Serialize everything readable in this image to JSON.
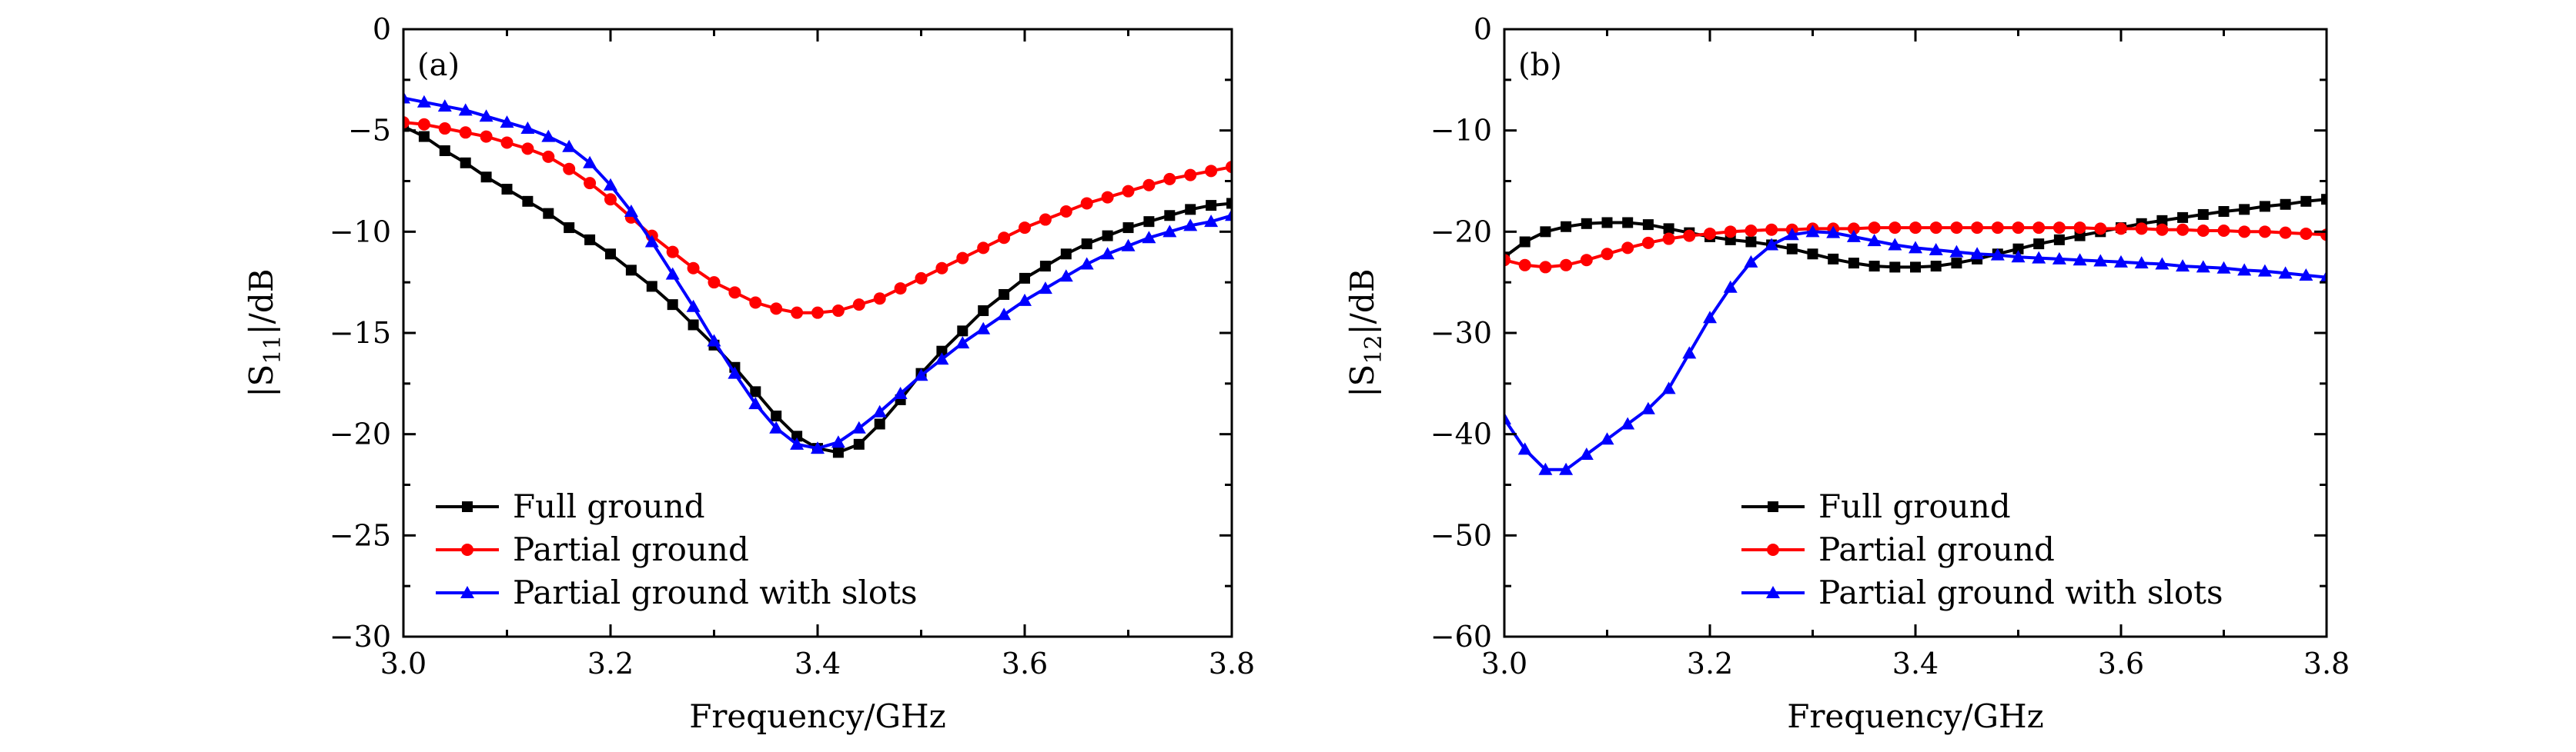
{
  "chart_data": [
    {
      "type": "line",
      "panel_label": "(a)",
      "xlabel": "Frequency/GHz",
      "ylabel_base": "|S",
      "ylabel_sub": "11",
      "ylabel_tail": "|/dB",
      "xlim": [
        3.0,
        3.8
      ],
      "ylim": [
        -30,
        0
      ],
      "xticks": [
        3.0,
        3.2,
        3.4,
        3.6,
        3.8
      ],
      "xtick_labels": [
        "3.0",
        "3.2",
        "3.4",
        "3.6",
        "3.8"
      ],
      "yticks": [
        0,
        -5,
        -10,
        -15,
        -20,
        -25,
        -30
      ],
      "ytick_labels": [
        "0",
        "−5",
        "−10",
        "−15",
        "−20",
        "−25",
        "−30"
      ],
      "grid": false,
      "legend_position": "bottom-left",
      "series": [
        {
          "name": "Full ground",
          "color": "#000000",
          "marker": "square",
          "x": [
            3.0,
            3.02,
            3.04,
            3.06,
            3.08,
            3.1,
            3.12,
            3.14,
            3.16,
            3.18,
            3.2,
            3.22,
            3.24,
            3.26,
            3.28,
            3.3,
            3.32,
            3.34,
            3.36,
            3.38,
            3.4,
            3.42,
            3.44,
            3.46,
            3.48,
            3.5,
            3.52,
            3.54,
            3.56,
            3.58,
            3.6,
            3.62,
            3.64,
            3.66,
            3.68,
            3.7,
            3.72,
            3.74,
            3.76,
            3.78,
            3.8
          ],
          "y": [
            -4.8,
            -5.3,
            -6.0,
            -6.6,
            -7.3,
            -7.9,
            -8.5,
            -9.1,
            -9.8,
            -10.4,
            -11.1,
            -11.9,
            -12.7,
            -13.6,
            -14.6,
            -15.6,
            -16.7,
            -17.9,
            -19.1,
            -20.1,
            -20.7,
            -20.9,
            -20.5,
            -19.5,
            -18.3,
            -17.0,
            -15.9,
            -14.9,
            -13.9,
            -13.1,
            -12.3,
            -11.7,
            -11.1,
            -10.6,
            -10.2,
            -9.8,
            -9.5,
            -9.2,
            -8.9,
            -8.7,
            -8.6
          ]
        },
        {
          "name": "Partial ground",
          "color": "#ff0000",
          "marker": "circle",
          "x": [
            3.0,
            3.02,
            3.04,
            3.06,
            3.08,
            3.1,
            3.12,
            3.14,
            3.16,
            3.18,
            3.2,
            3.22,
            3.24,
            3.26,
            3.28,
            3.3,
            3.32,
            3.34,
            3.36,
            3.38,
            3.4,
            3.42,
            3.44,
            3.46,
            3.48,
            3.5,
            3.52,
            3.54,
            3.56,
            3.58,
            3.6,
            3.62,
            3.64,
            3.66,
            3.68,
            3.7,
            3.72,
            3.74,
            3.76,
            3.78,
            3.8
          ],
          "y": [
            -4.6,
            -4.7,
            -4.9,
            -5.1,
            -5.3,
            -5.6,
            -5.9,
            -6.3,
            -6.9,
            -7.6,
            -8.4,
            -9.3,
            -10.2,
            -11.0,
            -11.8,
            -12.5,
            -13.0,
            -13.5,
            -13.8,
            -14.0,
            -14.0,
            -13.9,
            -13.6,
            -13.3,
            -12.8,
            -12.3,
            -11.8,
            -11.3,
            -10.8,
            -10.3,
            -9.8,
            -9.4,
            -9.0,
            -8.6,
            -8.3,
            -8.0,
            -7.7,
            -7.4,
            -7.2,
            -7.0,
            -6.8
          ]
        },
        {
          "name": "Partial ground with slots",
          "color": "#0000ff",
          "marker": "triangle",
          "x": [
            3.0,
            3.02,
            3.04,
            3.06,
            3.08,
            3.1,
            3.12,
            3.14,
            3.16,
            3.18,
            3.2,
            3.22,
            3.24,
            3.26,
            3.28,
            3.3,
            3.32,
            3.34,
            3.36,
            3.38,
            3.4,
            3.42,
            3.44,
            3.46,
            3.48,
            3.5,
            3.52,
            3.54,
            3.56,
            3.58,
            3.6,
            3.62,
            3.64,
            3.66,
            3.68,
            3.7,
            3.72,
            3.74,
            3.76,
            3.78,
            3.8
          ],
          "y": [
            -3.4,
            -3.6,
            -3.8,
            -4.0,
            -4.3,
            -4.6,
            -4.9,
            -5.3,
            -5.8,
            -6.6,
            -7.7,
            -9.0,
            -10.5,
            -12.1,
            -13.7,
            -15.4,
            -17.0,
            -18.5,
            -19.7,
            -20.5,
            -20.7,
            -20.4,
            -19.7,
            -18.9,
            -18.0,
            -17.1,
            -16.3,
            -15.5,
            -14.8,
            -14.1,
            -13.4,
            -12.8,
            -12.2,
            -11.6,
            -11.1,
            -10.7,
            -10.3,
            -10.0,
            -9.7,
            -9.5,
            -9.2
          ]
        }
      ]
    },
    {
      "type": "line",
      "panel_label": "(b)",
      "xlabel": "Frequency/GHz",
      "ylabel_base": "|S",
      "ylabel_sub": "12",
      "ylabel_tail": "|/dB",
      "xlim": [
        3.0,
        3.8
      ],
      "ylim": [
        -60,
        0
      ],
      "xticks": [
        3.0,
        3.2,
        3.4,
        3.6,
        3.8
      ],
      "xtick_labels": [
        "3.0",
        "3.2",
        "3.4",
        "3.6",
        "3.8"
      ],
      "yticks": [
        0,
        -10,
        -20,
        -30,
        -40,
        -50,
        -60
      ],
      "ytick_labels": [
        "0",
        "−10",
        "−20",
        "−30",
        "−40",
        "−50",
        "−60"
      ],
      "grid": false,
      "legend_position": "bottom-right",
      "series": [
        {
          "name": "Full ground",
          "color": "#000000",
          "marker": "square",
          "x": [
            3.0,
            3.02,
            3.04,
            3.06,
            3.08,
            3.1,
            3.12,
            3.14,
            3.16,
            3.18,
            3.2,
            3.22,
            3.24,
            3.26,
            3.28,
            3.3,
            3.32,
            3.34,
            3.36,
            3.38,
            3.4,
            3.42,
            3.44,
            3.46,
            3.48,
            3.5,
            3.52,
            3.54,
            3.56,
            3.58,
            3.6,
            3.62,
            3.64,
            3.66,
            3.68,
            3.7,
            3.72,
            3.74,
            3.76,
            3.78,
            3.8
          ],
          "y": [
            -22.5,
            -21.0,
            -20.0,
            -19.5,
            -19.2,
            -19.1,
            -19.1,
            -19.3,
            -19.7,
            -20.1,
            -20.5,
            -20.8,
            -21.0,
            -21.3,
            -21.7,
            -22.2,
            -22.7,
            -23.1,
            -23.4,
            -23.5,
            -23.5,
            -23.4,
            -23.1,
            -22.7,
            -22.2,
            -21.7,
            -21.2,
            -20.8,
            -20.4,
            -20.0,
            -19.6,
            -19.2,
            -18.9,
            -18.6,
            -18.3,
            -18.0,
            -17.8,
            -17.5,
            -17.3,
            -17.0,
            -16.8
          ]
        },
        {
          "name": "Partial ground",
          "color": "#ff0000",
          "marker": "circle",
          "x": [
            3.0,
            3.02,
            3.04,
            3.06,
            3.08,
            3.1,
            3.12,
            3.14,
            3.16,
            3.18,
            3.2,
            3.22,
            3.24,
            3.26,
            3.28,
            3.3,
            3.32,
            3.34,
            3.36,
            3.38,
            3.4,
            3.42,
            3.44,
            3.46,
            3.48,
            3.5,
            3.52,
            3.54,
            3.56,
            3.58,
            3.6,
            3.62,
            3.64,
            3.66,
            3.68,
            3.7,
            3.72,
            3.74,
            3.76,
            3.78,
            3.8
          ],
          "y": [
            -22.8,
            -23.3,
            -23.5,
            -23.3,
            -22.8,
            -22.2,
            -21.6,
            -21.1,
            -20.7,
            -20.4,
            -20.2,
            -20.0,
            -19.9,
            -19.8,
            -19.8,
            -19.7,
            -19.7,
            -19.7,
            -19.6,
            -19.6,
            -19.6,
            -19.6,
            -19.6,
            -19.6,
            -19.6,
            -19.6,
            -19.6,
            -19.6,
            -19.6,
            -19.7,
            -19.7,
            -19.7,
            -19.8,
            -19.8,
            -19.9,
            -19.9,
            -20.0,
            -20.0,
            -20.1,
            -20.2,
            -20.3
          ]
        },
        {
          "name": "Partial ground with slots",
          "color": "#0000ff",
          "marker": "triangle",
          "x": [
            3.0,
            3.02,
            3.04,
            3.06,
            3.08,
            3.1,
            3.12,
            3.14,
            3.16,
            3.18,
            3.2,
            3.22,
            3.24,
            3.26,
            3.28,
            3.3,
            3.32,
            3.34,
            3.36,
            3.38,
            3.4,
            3.42,
            3.44,
            3.46,
            3.48,
            3.5,
            3.52,
            3.54,
            3.56,
            3.58,
            3.6,
            3.62,
            3.64,
            3.66,
            3.68,
            3.7,
            3.72,
            3.74,
            3.76,
            3.78,
            3.8
          ],
          "y": [
            -38.5,
            -41.5,
            -43.5,
            -43.5,
            -42.0,
            -40.5,
            -39.0,
            -37.5,
            -35.5,
            -32.0,
            -28.5,
            -25.5,
            -23.0,
            -21.3,
            -20.3,
            -20.0,
            -20.1,
            -20.5,
            -20.9,
            -21.3,
            -21.6,
            -21.8,
            -22.0,
            -22.2,
            -22.3,
            -22.5,
            -22.6,
            -22.7,
            -22.8,
            -22.9,
            -23.0,
            -23.1,
            -23.2,
            -23.4,
            -23.5,
            -23.6,
            -23.8,
            -23.9,
            -24.1,
            -24.3,
            -24.5
          ]
        }
      ]
    }
  ]
}
